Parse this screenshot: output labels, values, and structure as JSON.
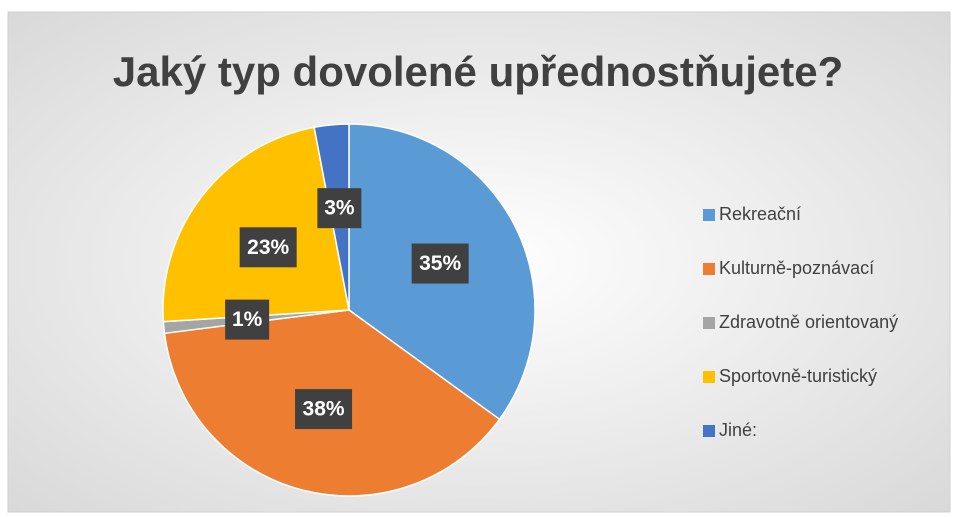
{
  "chart_data": {
    "type": "pie",
    "title": "Jaký typ dovolené upřednostňujete?",
    "categories": [
      "Rekreační",
      "Kulturně-poznávací",
      "Zdravotně orientovaný",
      "Sportovně-turistický",
      "Jiné:"
    ],
    "values": [
      35,
      38,
      1,
      23,
      3
    ],
    "value_labels": [
      "35%",
      "38%",
      "1%",
      "23%",
      "3%"
    ],
    "colors": [
      "#5b9bd5",
      "#ed7d31",
      "#a5a5a5",
      "#ffc000",
      "#4472c4"
    ],
    "legend": "right"
  }
}
